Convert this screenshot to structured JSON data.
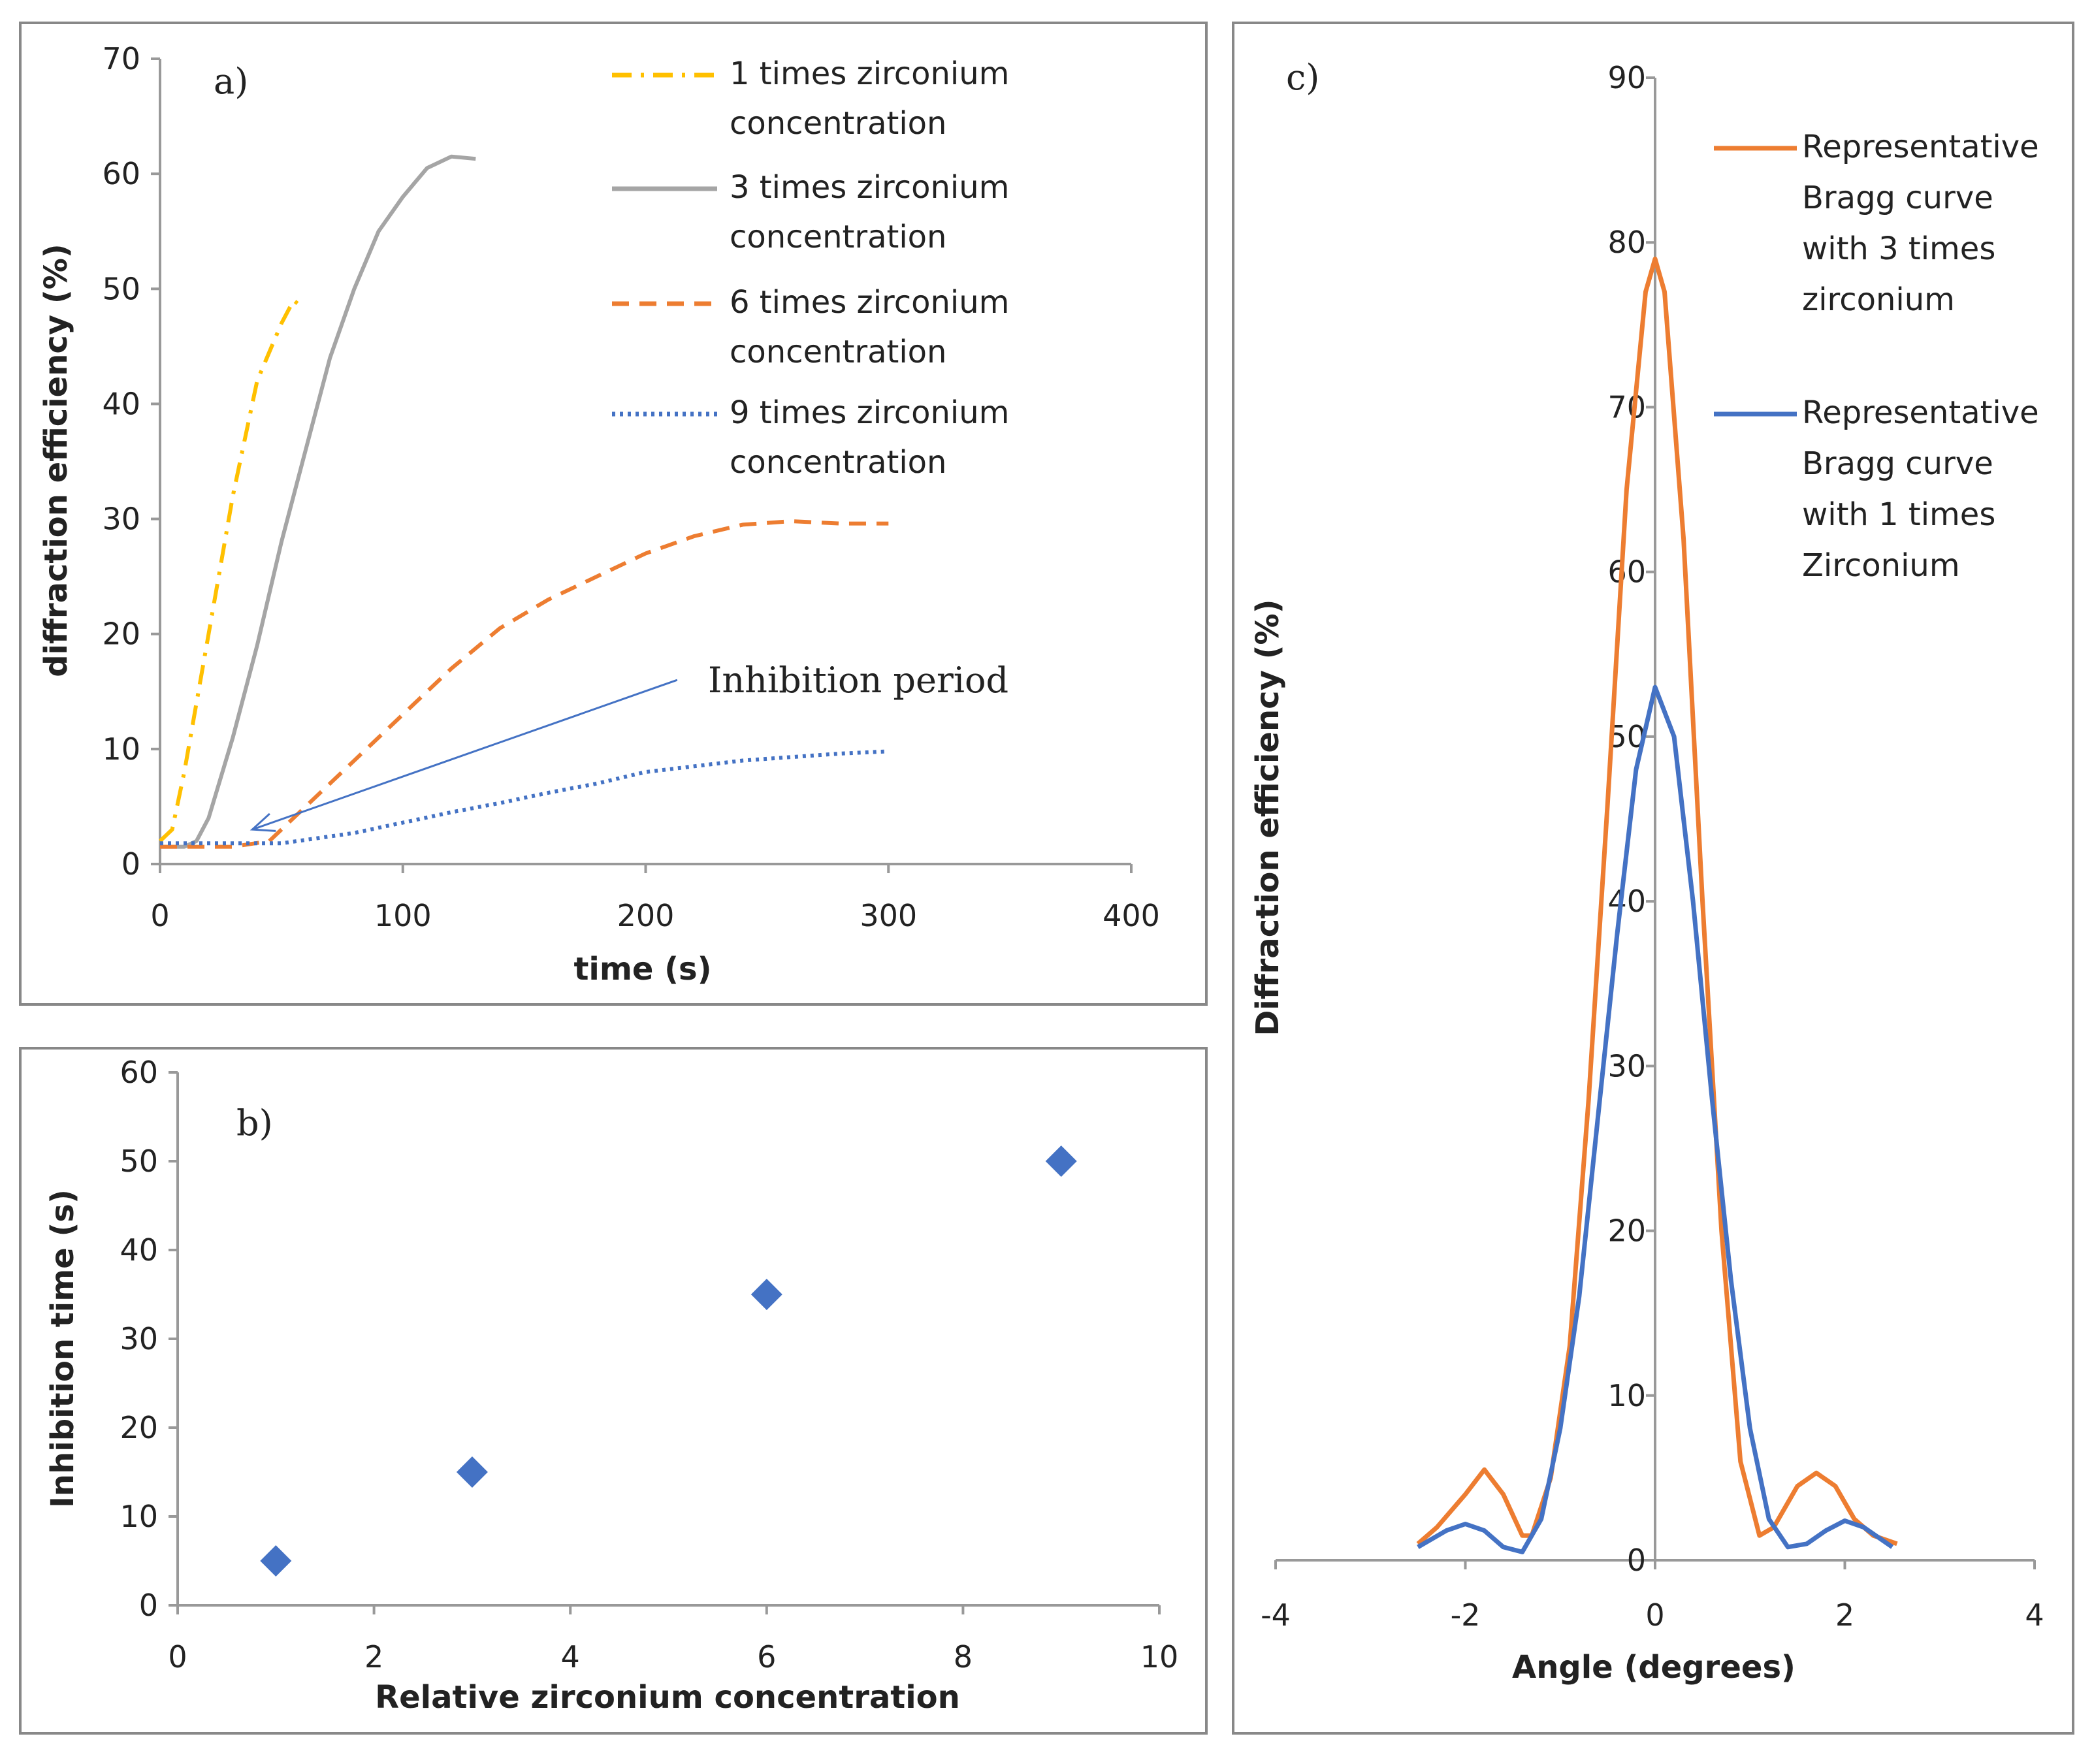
{
  "chart_data": [
    {
      "id": "a",
      "type": "line",
      "panel_label": "a)",
      "xlabel": "time (s)",
      "ylabel": "diffraction efficiency (%)",
      "xlim": [
        0,
        400
      ],
      "ylim": [
        0,
        70
      ],
      "xticks": [
        0,
        100,
        200,
        300,
        400
      ],
      "yticks": [
        0,
        10,
        20,
        30,
        40,
        50,
        60,
        70
      ],
      "grid": false,
      "legend_placement": "top-right",
      "annotation": {
        "text": "Inhibition period",
        "arrow_from": [
          213,
          16
        ],
        "arrow_to": [
          38,
          3
        ]
      },
      "series": [
        {
          "name": [
            "1 times zirconium",
            "concentration"
          ],
          "color": "#FFC000",
          "style": "dashdot",
          "points": [
            [
              0,
              2
            ],
            [
              5,
              3
            ],
            [
              10,
              8
            ],
            [
              15,
              14
            ],
            [
              20,
              20
            ],
            [
              30,
              32
            ],
            [
              40,
              42
            ],
            [
              50,
              47
            ],
            [
              55,
              49
            ],
            [
              58,
              48.5
            ]
          ]
        },
        {
          "name": [
            "3 times zirconium",
            "concentration"
          ],
          "color": "#A5A5A5",
          "style": "solid",
          "points": [
            [
              0,
              1.5
            ],
            [
              10,
              1.5
            ],
            [
              15,
              2
            ],
            [
              20,
              4
            ],
            [
              30,
              11
            ],
            [
              40,
              19
            ],
            [
              50,
              28
            ],
            [
              60,
              36
            ],
            [
              70,
              44
            ],
            [
              80,
              50
            ],
            [
              90,
              55
            ],
            [
              100,
              58
            ],
            [
              110,
              60.5
            ],
            [
              120,
              61.5
            ],
            [
              130,
              61.3
            ]
          ]
        },
        {
          "name": [
            "6 times zirconium",
            "concentration"
          ],
          "color": "#ED7D31",
          "style": "dashed",
          "points": [
            [
              0,
              1.5
            ],
            [
              30,
              1.5
            ],
            [
              45,
              2
            ],
            [
              60,
              5
            ],
            [
              80,
              9
            ],
            [
              100,
              13
            ],
            [
              120,
              17
            ],
            [
              140,
              20.5
            ],
            [
              160,
              23
            ],
            [
              180,
              25
            ],
            [
              200,
              27
            ],
            [
              220,
              28.5
            ],
            [
              240,
              29.5
            ],
            [
              260,
              29.8
            ],
            [
              280,
              29.6
            ],
            [
              300,
              29.6
            ]
          ]
        },
        {
          "name": [
            "9 times zirconium",
            "concentration"
          ],
          "color": "#4472C4",
          "style": "dotted",
          "points": [
            [
              0,
              1.8
            ],
            [
              50,
              1.8
            ],
            [
              80,
              2.7
            ],
            [
              100,
              3.6
            ],
            [
              120,
              4.5
            ],
            [
              140,
              5.3
            ],
            [
              160,
              6.2
            ],
            [
              180,
              7
            ],
            [
              200,
              8
            ],
            [
              220,
              8.5
            ],
            [
              240,
              9
            ],
            [
              260,
              9.3
            ],
            [
              280,
              9.6
            ],
            [
              300,
              9.8
            ]
          ]
        }
      ]
    },
    {
      "id": "b",
      "type": "scatter",
      "panel_label": "b)",
      "xlabel": "Relative zirconium concentration",
      "ylabel": "Inhibition time (s)",
      "xlim": [
        0,
        10
      ],
      "ylim": [
        0,
        60
      ],
      "xticks": [
        0,
        2,
        4,
        6,
        8,
        10
      ],
      "yticks": [
        0,
        10,
        20,
        30,
        40,
        50,
        60
      ],
      "grid": false,
      "series": [
        {
          "name": "Inhibition time",
          "color": "#4472C4",
          "marker": "diamond",
          "points": [
            [
              1,
              5
            ],
            [
              3,
              15
            ],
            [
              6,
              35
            ],
            [
              9,
              50
            ]
          ]
        }
      ]
    },
    {
      "id": "c",
      "type": "line",
      "panel_label": "c)",
      "xlabel": "Angle (degrees)",
      "ylabel": "Diffraction efficiency (%)",
      "xlim": [
        -4,
        4
      ],
      "ylim": [
        0,
        90
      ],
      "xticks": [
        -4,
        -2,
        0,
        2,
        4
      ],
      "yticks": [
        0,
        10,
        20,
        30,
        40,
        50,
        60,
        70,
        80,
        90
      ],
      "grid": false,
      "legend_placement": "top-right",
      "series": [
        {
          "name": [
            "Representative",
            "Bragg curve",
            "with 3 times",
            "zirconium"
          ],
          "color": "#ED7D31",
          "style": "solid",
          "points": [
            [
              -2.5,
              1
            ],
            [
              -2.3,
              2
            ],
            [
              -2.0,
              4
            ],
            [
              -1.8,
              5.5
            ],
            [
              -1.6,
              4
            ],
            [
              -1.4,
              1.5
            ],
            [
              -1.3,
              1.5
            ],
            [
              -1.1,
              5
            ],
            [
              -0.9,
              13
            ],
            [
              -0.7,
              28
            ],
            [
              -0.5,
              46
            ],
            [
              -0.3,
              65
            ],
            [
              -0.1,
              77
            ],
            [
              0,
              79
            ],
            [
              0.1,
              77
            ],
            [
              0.3,
              62
            ],
            [
              0.5,
              40
            ],
            [
              0.7,
              20
            ],
            [
              0.9,
              6
            ],
            [
              1.1,
              1.5
            ],
            [
              1.25,
              2
            ],
            [
              1.5,
              4.5
            ],
            [
              1.7,
              5.3
            ],
            [
              1.9,
              4.5
            ],
            [
              2.1,
              2.5
            ],
            [
              2.3,
              1.5
            ],
            [
              2.55,
              1
            ]
          ]
        },
        {
          "name": [
            "Representative",
            "Bragg curve",
            "with 1 times",
            "Zirconium"
          ],
          "color": "#4472C4",
          "style": "solid",
          "points": [
            [
              -2.5,
              0.8
            ],
            [
              -2.2,
              1.8
            ],
            [
              -2.0,
              2.2
            ],
            [
              -1.8,
              1.8
            ],
            [
              -1.6,
              0.8
            ],
            [
              -1.4,
              0.5
            ],
            [
              -1.2,
              2.5
            ],
            [
              -1.0,
              8
            ],
            [
              -0.8,
              16
            ],
            [
              -0.6,
              27
            ],
            [
              -0.4,
              38
            ],
            [
              -0.2,
              48
            ],
            [
              0,
              53
            ],
            [
              0.2,
              50
            ],
            [
              0.4,
              40
            ],
            [
              0.6,
              28
            ],
            [
              0.8,
              17
            ],
            [
              1.0,
              8
            ],
            [
              1.2,
              2.5
            ],
            [
              1.4,
              0.8
            ],
            [
              1.6,
              1
            ],
            [
              1.8,
              1.8
            ],
            [
              2.0,
              2.4
            ],
            [
              2.2,
              2
            ],
            [
              2.5,
              0.8
            ]
          ]
        }
      ]
    }
  ]
}
